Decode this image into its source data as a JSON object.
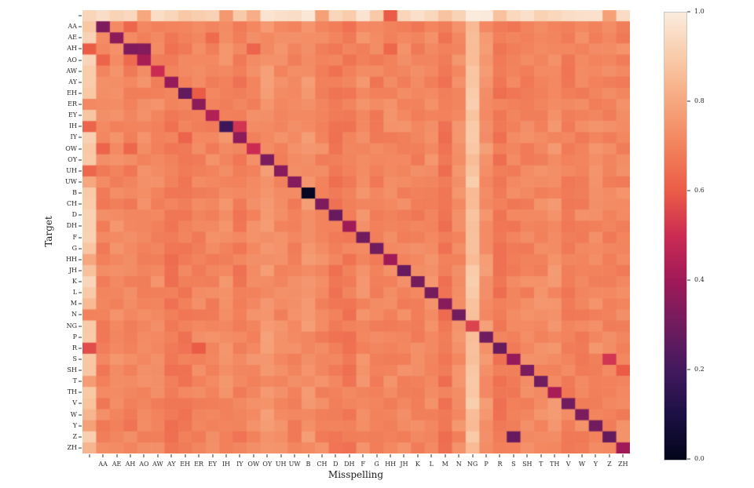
{
  "chart_data": {
    "type": "heatmap",
    "xlabel": "Misspelling",
    "ylabel": "Target",
    "labels": [
      "",
      "AA",
      "AE",
      "AH",
      "AO",
      "AW",
      "AY",
      "EH",
      "ER",
      "EY",
      "IH",
      "IY",
      "OW",
      "OY",
      "UH",
      "UW",
      "B",
      "CH",
      "D",
      "DH",
      "F",
      "G",
      "HH",
      "JH",
      "K",
      "L",
      "M",
      "N",
      "NG",
      "P",
      "R",
      "S",
      "SH",
      "T",
      "TH",
      "V",
      "W",
      "Y",
      "Z",
      "ZH"
    ],
    "value_range": [
      0.0,
      1.0
    ],
    "colorbar": {
      "ticks": [
        1.0,
        0.8,
        0.6,
        0.4,
        0.2,
        0.0
      ],
      "tick_labels": [
        "1.0",
        "0.8",
        "0.6",
        "0.4",
        "0.2",
        "0.0"
      ]
    },
    "colormap_name": "rocket",
    "colormap_stops": [
      [
        0.0,
        "#03051B"
      ],
      [
        0.1,
        "#1C1044"
      ],
      [
        0.2,
        "#43195E"
      ],
      [
        0.3,
        "#701C5E"
      ],
      [
        0.4,
        "#A01A58"
      ],
      [
        0.5,
        "#CB2B53"
      ],
      [
        0.6,
        "#EB5C47"
      ],
      [
        0.7,
        "#F2825C"
      ],
      [
        0.8,
        "#F6A77E"
      ],
      [
        0.9,
        "#F9CBA9"
      ],
      [
        1.0,
        "#FAEBDD"
      ]
    ],
    "matrix_model": {
      "base_offdiagonal_value": 0.7,
      "noise_amplitude": 0.07,
      "column_texture_amplitude": 0.05,
      "row_bias": {
        "": 0.23
      },
      "col_bias": {
        "": 0.2,
        "OY": 0.05,
        "UW": 0.03,
        "B": 0.03,
        "NG": 0.16,
        "P": 0.03,
        "TH": 0.03
      },
      "diagonal": [
        null,
        0.33,
        0.36,
        0.33,
        0.42,
        0.5,
        0.38,
        0.27,
        0.36,
        0.44,
        0.18,
        0.36,
        0.5,
        0.32,
        0.35,
        0.34,
        0.02,
        0.33,
        0.28,
        0.4,
        0.3,
        0.3,
        0.4,
        0.28,
        0.31,
        0.31,
        0.35,
        0.3,
        0.55,
        0.3,
        0.28,
        0.38,
        0.32,
        0.3,
        0.42,
        0.3,
        0.32,
        0.3,
        0.27,
        0.4
      ],
      "cells_override": [
        {
          "row": "",
          "col": "",
          "value": 0.93
        },
        {
          "row": "",
          "col": "AO",
          "value": 0.8
        },
        {
          "row": "",
          "col": "IH",
          "value": 0.76
        },
        {
          "row": "",
          "col": "OW",
          "value": 0.82
        },
        {
          "row": "",
          "col": "CH",
          "value": 0.78
        },
        {
          "row": "",
          "col": "HH",
          "value": 0.6
        },
        {
          "row": "",
          "col": "Z",
          "value": 0.78
        },
        {
          "row": "AA",
          "col": "AH",
          "value": 0.63
        },
        {
          "row": "AE",
          "col": "EY",
          "value": 0.64
        },
        {
          "row": "AH",
          "col": "",
          "value": 0.6
        },
        {
          "row": "AH",
          "col": "AO",
          "value": 0.34
        },
        {
          "row": "AH",
          "col": "OW",
          "value": 0.62
        },
        {
          "row": "AH",
          "col": "HH",
          "value": 0.63
        },
        {
          "row": "AO",
          "col": "AA",
          "value": 0.62
        },
        {
          "row": "AO",
          "col": "AH",
          "value": 0.64
        },
        {
          "row": "EH",
          "col": "ER",
          "value": 0.6
        },
        {
          "row": "ER",
          "col": "",
          "value": 0.72
        },
        {
          "row": "IH",
          "col": "",
          "value": 0.62
        },
        {
          "row": "IH",
          "col": "IY",
          "value": 0.52
        },
        {
          "row": "IY",
          "col": "EH",
          "value": 0.62
        },
        {
          "row": "OW",
          "col": "AA",
          "value": 0.62
        },
        {
          "row": "OW",
          "col": "AH",
          "value": 0.63
        },
        {
          "row": "UH",
          "col": "",
          "value": 0.63
        },
        {
          "row": "UW",
          "col": "",
          "value": 0.8
        },
        {
          "row": "HH",
          "col": "",
          "value": 0.8
        },
        {
          "row": "M",
          "col": "",
          "value": 0.85
        },
        {
          "row": "N",
          "col": "",
          "value": 0.7
        },
        {
          "row": "N",
          "col": "M",
          "value": 0.64
        },
        {
          "row": "R",
          "col": "",
          "value": 0.57
        },
        {
          "row": "R",
          "col": "ER",
          "value": 0.6
        },
        {
          "row": "S",
          "col": "Z",
          "value": 0.52
        },
        {
          "row": "SH",
          "col": "ZH",
          "value": 0.6
        },
        {
          "row": "T",
          "col": "",
          "value": 0.77
        },
        {
          "row": "W",
          "col": "",
          "value": 0.84
        },
        {
          "row": "Y",
          "col": "",
          "value": 0.78
        },
        {
          "row": "Y",
          "col": "AH",
          "value": 0.66
        },
        {
          "row": "Z",
          "col": "S",
          "value": 0.28
        },
        {
          "row": "ZH",
          "col": "",
          "value": 0.84
        }
      ]
    }
  }
}
